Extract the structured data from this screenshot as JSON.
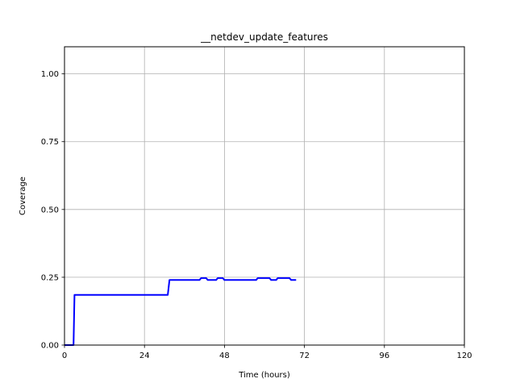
{
  "chart_data": {
    "type": "line",
    "title": "__netdev_update_features",
    "xlabel": "Time (hours)",
    "ylabel": "Coverage",
    "xlim": [
      0,
      120
    ],
    "ylim": [
      0,
      1.1
    ],
    "xticks": [
      0,
      24,
      48,
      72,
      96,
      120
    ],
    "xtick_labels": [
      "0",
      "24",
      "48",
      "72",
      "96",
      "120"
    ],
    "yticks": [
      0.0,
      0.25,
      0.5,
      0.75,
      1.0
    ],
    "ytick_labels": [
      "0.00",
      "0.25",
      "0.50",
      "0.75",
      "1.00"
    ],
    "grid": true,
    "series": [
      {
        "color": "#0000ff",
        "x": [
          0,
          2.7,
          3.0,
          31.0,
          31.5,
          40.5,
          41.0,
          42.5,
          43.0,
          45.5,
          46.0,
          47.5,
          48.0,
          57.5,
          58.0,
          61.5,
          62.0,
          63.5,
          64.0,
          67.5,
          68.0,
          69.5
        ],
        "y": [
          0.0,
          0.0,
          0.185,
          0.185,
          0.24,
          0.24,
          0.247,
          0.247,
          0.24,
          0.24,
          0.247,
          0.247,
          0.24,
          0.24,
          0.247,
          0.247,
          0.24,
          0.24,
          0.247,
          0.247,
          0.24,
          0.24
        ]
      }
    ]
  }
}
